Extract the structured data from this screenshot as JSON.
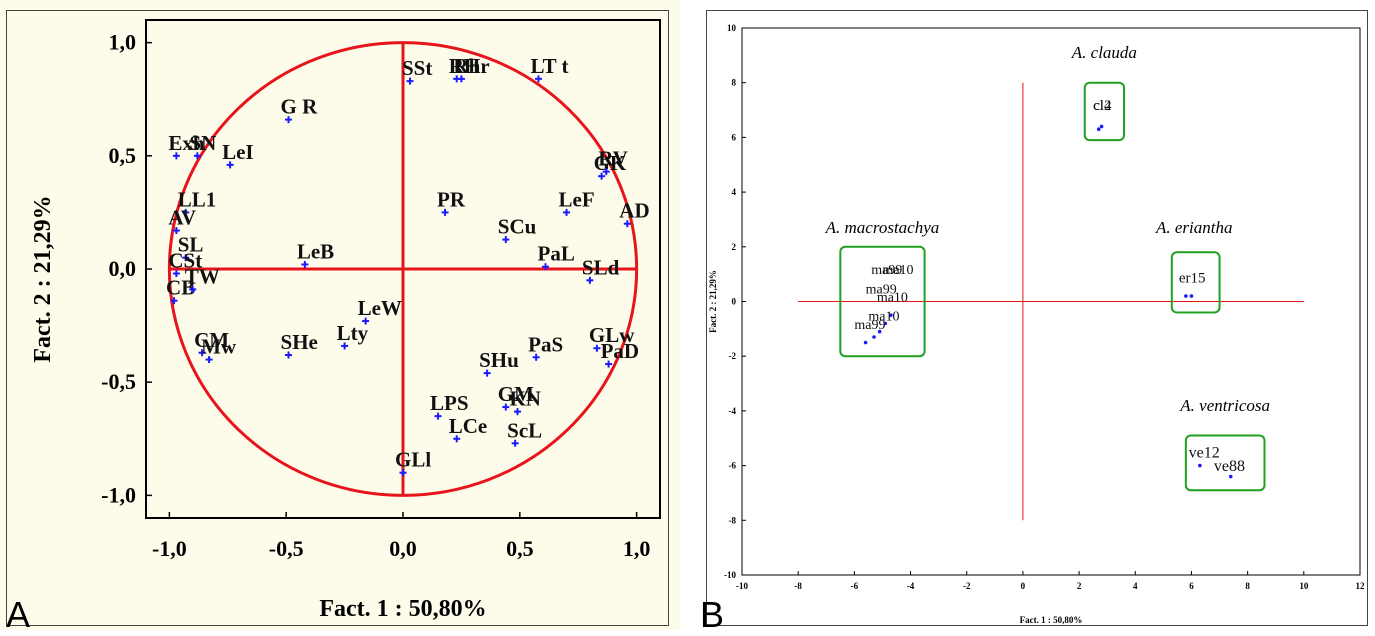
{
  "chart_data": [
    {
      "panel": "A",
      "type": "scatter",
      "title": "",
      "xlabel": "Fact. 1  : 50,80%",
      "ylabel": "Fact. 2  : 21,29%",
      "xlim": [
        -1.1,
        1.1
      ],
      "ylim": [
        -1.1,
        1.1
      ],
      "xticks": [
        "-1,0",
        "-0,5",
        "0,0",
        "0,5",
        "1,0"
      ],
      "yticks": [
        "1,0",
        "0,5",
        "0,0",
        "-0,5",
        "-1,0"
      ],
      "grid": false,
      "unit_circle": true,
      "points": [
        {
          "label": "SSt",
          "x": 0.03,
          "y": 0.83
        },
        {
          "label": "RH",
          "x": 0.23,
          "y": 0.84
        },
        {
          "label": "Rhr",
          "x": 0.25,
          "y": 0.84
        },
        {
          "label": "LT t",
          "x": 0.58,
          "y": 0.84
        },
        {
          "label": "G R",
          "x": -0.49,
          "y": 0.66
        },
        {
          "label": "Exh",
          "x": -0.97,
          "y": 0.5
        },
        {
          "label": "SN",
          "x": -0.88,
          "y": 0.5
        },
        {
          "label": "LeI",
          "x": -0.74,
          "y": 0.46
        },
        {
          "label": "GK",
          "x": 0.85,
          "y": 0.41
        },
        {
          "label": "RV",
          "x": 0.87,
          "y": 0.43
        },
        {
          "label": "PR",
          "x": 0.18,
          "y": 0.25
        },
        {
          "label": "SCu",
          "x": 0.44,
          "y": 0.13
        },
        {
          "label": "LeF",
          "x": 0.7,
          "y": 0.25
        },
        {
          "label": "AD",
          "x": 0.96,
          "y": 0.2
        },
        {
          "label": "LL1",
          "x": -0.93,
          "y": 0.25
        },
        {
          "label": "AV",
          "x": -0.97,
          "y": 0.17
        },
        {
          "label": "LeB",
          "x": -0.42,
          "y": 0.02
        },
        {
          "label": "PaL",
          "x": 0.61,
          "y": 0.01
        },
        {
          "label": "SLd",
          "x": 0.8,
          "y": -0.05
        },
        {
          "label": "SL",
          "x": -0.93,
          "y": 0.05
        },
        {
          "label": "CSt",
          "x": -0.97,
          "y": -0.02
        },
        {
          "label": "CB",
          "x": -0.98,
          "y": -0.14
        },
        {
          "label": "TW",
          "x": -0.9,
          "y": -0.09
        },
        {
          "label": "LeW",
          "x": -0.16,
          "y": -0.23
        },
        {
          "label": "Lty",
          "x": -0.25,
          "y": -0.34
        },
        {
          "label": "SHe",
          "x": -0.49,
          "y": -0.38
        },
        {
          "label": "CM",
          "x": -0.86,
          "y": -0.37
        },
        {
          "label": "Mw",
          "x": -0.83,
          "y": -0.4
        },
        {
          "label": "PaS",
          "x": 0.57,
          "y": -0.39
        },
        {
          "label": "GLw",
          "x": 0.83,
          "y": -0.35
        },
        {
          "label": "PaD",
          "x": 0.88,
          "y": -0.42
        },
        {
          "label": "SHu",
          "x": 0.36,
          "y": -0.46
        },
        {
          "label": "GM",
          "x": 0.44,
          "y": -0.61
        },
        {
          "label": "KN",
          "x": 0.49,
          "y": -0.63
        },
        {
          "label": "LPS",
          "x": 0.15,
          "y": -0.65
        },
        {
          "label": "LCe",
          "x": 0.23,
          "y": -0.75
        },
        {
          "label": "ScL",
          "x": 0.48,
          "y": -0.77
        },
        {
          "label": "GLl",
          "x": 0.0,
          "y": -0.9
        }
      ]
    },
    {
      "panel": "B",
      "type": "scatter",
      "title": "",
      "xlabel": "Fact. 1 : 50,80%",
      "ylabel": "Fact. 2 : 21,29%",
      "xlim": [
        -10,
        12
      ],
      "ylim": [
        -10,
        10
      ],
      "xticks": [
        "-10",
        "-8",
        "-6",
        "-4",
        "-2",
        "0",
        "2",
        "4",
        "6",
        "8",
        "10",
        "12"
      ],
      "yticks": [
        "10",
        "8",
        "6",
        "4",
        "2",
        "0",
        "-2",
        "-4",
        "-6",
        "-8",
        "-10"
      ],
      "grid": false,
      "groups": [
        {
          "name": "A. clauda",
          "labels": [
            "cl2",
            "cl4"
          ],
          "points": [
            {
              "x": 2.7,
              "y": 6.3
            },
            {
              "x": 2.8,
              "y": 6.4
            }
          ]
        },
        {
          "name": "A. macrostachya",
          "labels": [
            "ma99",
            "ma10"
          ],
          "points": [
            {
              "x": -5.6,
              "y": -1.5
            },
            {
              "x": -5.3,
              "y": -1.3
            },
            {
              "x": -5.1,
              "y": -1.1
            },
            {
              "x": -4.9,
              "y": -0.8
            },
            {
              "x": -4.7,
              "y": -0.5
            }
          ]
        },
        {
          "name": "A. eriantha",
          "labels": [
            "er15"
          ],
          "points": [
            {
              "x": 5.8,
              "y": 0.2
            },
            {
              "x": 6.0,
              "y": 0.2
            }
          ]
        },
        {
          "name": "A. ventricosa",
          "labels": [
            "ve12",
            "ve88"
          ],
          "points": [
            {
              "x": 6.3,
              "y": -6.0
            },
            {
              "x": 7.4,
              "y": -6.4
            }
          ]
        }
      ]
    }
  ],
  "panels": {
    "a_letter": "A",
    "b_letter": "B"
  },
  "colors": {
    "axis_red": "#e8141b",
    "point_blue": "#1a1aff",
    "group_green": "#20a020",
    "panel_a_bg": "#fdfbea"
  }
}
